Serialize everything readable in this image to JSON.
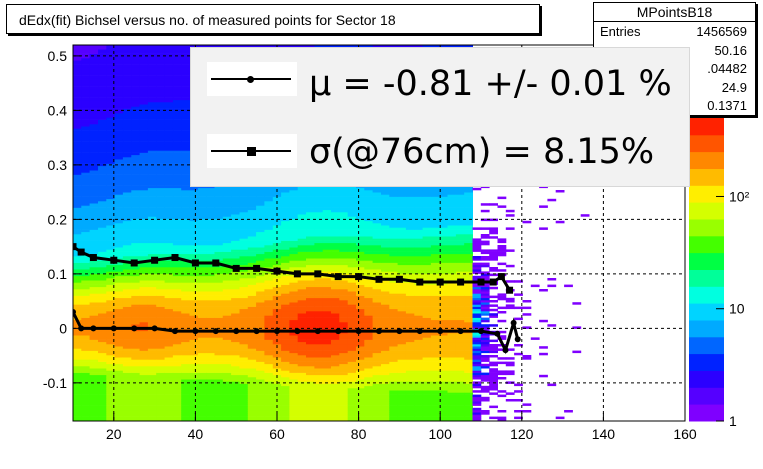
{
  "title": "dEdx(fit) Bichsel versus no. of measured points for Sector 18",
  "stats": {
    "name": "MPointsB18",
    "rows": [
      {
        "key": "Entries",
        "value": "1456569"
      },
      {
        "key": "",
        "value": "50.16"
      },
      {
        "key": "",
        "value": ".04482"
      },
      {
        "key": "",
        "value": "24.9"
      },
      {
        "key": "",
        "value": "0.1371"
      }
    ]
  },
  "legend": {
    "mu": "μ  = -0.81 +/-  0.01 %",
    "sigma": "σ(@76cm) =  8.15%"
  },
  "chart_data": {
    "type": "heatmap",
    "title": "dEdx(fit) Bichsel versus no. of measured points for Sector 18",
    "xlim": [
      10,
      160
    ],
    "ylim": [
      -0.17,
      0.52
    ],
    "x_ticks": [
      20,
      40,
      60,
      80,
      100,
      120,
      140,
      160
    ],
    "y_ticks": [
      -0.1,
      0,
      0.1,
      0.2,
      0.3,
      0.4,
      0.5
    ],
    "x_tick_labels": [
      "20",
      "40",
      "60",
      "80",
      "100",
      "120",
      "140",
      "160"
    ],
    "y_tick_labels": [
      "-0.1",
      "0",
      "0.1",
      "0.2",
      "0.3",
      "0.4",
      "0.5"
    ],
    "z_scale": "log",
    "z_range": [
      1,
      500
    ],
    "z_tick_labels": [
      "1",
      "10",
      "10²"
    ],
    "grid": true,
    "colors": [
      "#7f00ff",
      "#5500ff",
      "#2b00ff",
      "#0022ff",
      "#0066ff",
      "#00aaff",
      "#00d4ff",
      "#00ffe0",
      "#00ff99",
      "#00ff44",
      "#44ff00",
      "#99ff00",
      "#d4ff00",
      "#ffee00",
      "#ffbb00",
      "#ff8800",
      "#ff5500",
      "#ff2200"
    ],
    "series": [
      {
        "name": "mean",
        "marker": "circle",
        "x": [
          10,
          12,
          15,
          20,
          25,
          30,
          35,
          40,
          45,
          50,
          55,
          60,
          65,
          70,
          75,
          80,
          85,
          90,
          95,
          100,
          105,
          110,
          114,
          116,
          118,
          119
        ],
        "y": [
          0.03,
          0,
          0,
          0,
          0,
          0,
          -0.005,
          -0.005,
          -0.005,
          -0.005,
          -0.005,
          -0.005,
          -0.005,
          -0.005,
          -0.005,
          -0.005,
          -0.005,
          -0.005,
          -0.005,
          -0.005,
          -0.005,
          -0.005,
          -0.01,
          -0.04,
          0.01,
          -0.02
        ]
      },
      {
        "name": "sigma",
        "marker": "square",
        "x": [
          10,
          12,
          15,
          20,
          25,
          30,
          35,
          40,
          45,
          50,
          55,
          60,
          65,
          70,
          75,
          80,
          85,
          90,
          95,
          100,
          105,
          110,
          113,
          115,
          117
        ],
        "y": [
          0.15,
          0.14,
          0.13,
          0.125,
          0.12,
          0.125,
          0.13,
          0.12,
          0.12,
          0.11,
          0.11,
          0.105,
          0.1,
          0.1,
          0.095,
          0.095,
          0.09,
          0.09,
          0.085,
          0.085,
          0.085,
          0.085,
          0.085,
          0.095,
          0.07
        ]
      }
    ]
  }
}
